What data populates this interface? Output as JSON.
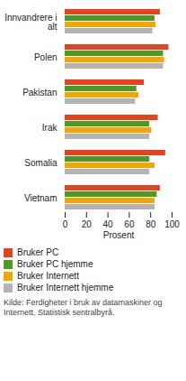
{
  "chart_data": {
    "type": "bar",
    "orientation": "horizontal",
    "categories": [
      "Innvandrere i alt",
      "Polen",
      "Pakistan",
      "Irak",
      "Somalia",
      "Vietnam"
    ],
    "series": [
      {
        "name": "Bruker PC",
        "color": "#e8411e",
        "values": [
          89,
          97,
          74,
          87,
          94,
          89
        ]
      },
      {
        "name": "Bruker PC hjemme",
        "color": "#4b9a22",
        "values": [
          84,
          92,
          67,
          79,
          79,
          86
        ]
      },
      {
        "name": "Bruker Internett",
        "color": "#f5a500",
        "values": [
          85,
          93,
          69,
          81,
          84,
          84
        ]
      },
      {
        "name": "Bruker Internett hjemme",
        "color": "#b4b4b4",
        "values": [
          82,
          92,
          66,
          79,
          79,
          84
        ]
      }
    ],
    "xlabel": "Prosent",
    "xlim": [
      0,
      100
    ],
    "xticks": [
      0,
      20,
      40,
      60,
      80,
      100
    ],
    "grid": false,
    "legend": "bottom",
    "caption": "Kilde: Ferdigheter i bruk av datamaskiner og Internett, Statistisk sentralbyrå."
  }
}
